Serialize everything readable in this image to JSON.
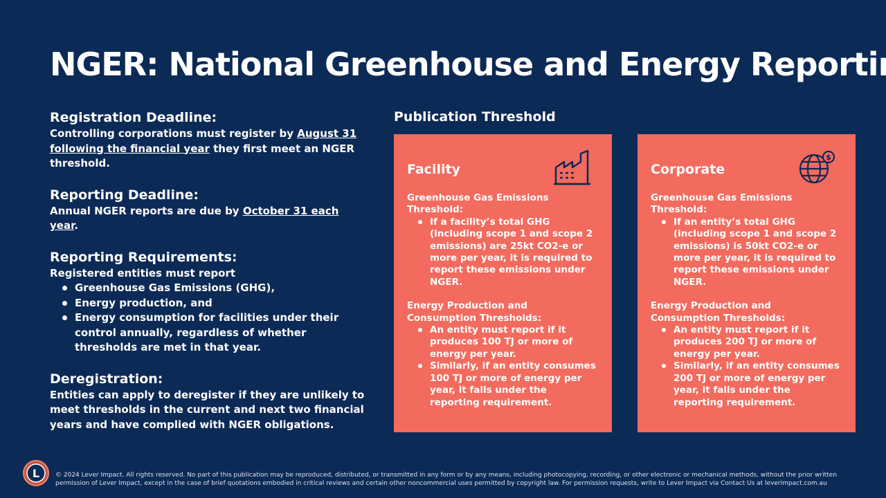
{
  "title": "NGER: National Greenhouse and Energy Reporting",
  "registration": {
    "heading": "Registration Deadline:",
    "text_before": "Controlling corporations must register by ",
    "link": "August 31 following the financial year",
    "text_after": " they first meet an NGER threshold."
  },
  "reporting_deadline": {
    "heading": "Reporting Deadline:",
    "text_before": "Annual NGER reports are due by ",
    "link": "October 31 each year",
    "text_after": "."
  },
  "requirements": {
    "heading": "Reporting Requirements:",
    "intro": "Registered entities must report",
    "items": [
      "Greenhouse Gas Emissions (GHG),",
      "Energy production, and",
      "Energy consumption for facilities under their control annually, regardless of whether thresholds are met in that year."
    ]
  },
  "deregistration": {
    "heading": "Deregistration:",
    "text": "Entities can apply to deregister if they are unlikely to meet thresholds in the current and next two financial years and have complied with NGER obligations."
  },
  "publication_threshold": {
    "heading": "Publication Threshold",
    "facility": {
      "title": "Facility",
      "icon": "factory-icon",
      "ghg_heading": "Greenhouse Gas Emissions Threshold:",
      "ghg_items": [
        "If a facility’s total GHG (including scope 1 and scope 2 emissions) are 25kt CO2-e or more per year, it is required to report these emissions under NGER."
      ],
      "energy_heading": "Energy Production and Consumption Thresholds:",
      "energy_items": [
        "An entity must report if it produces 100 TJ or more of energy per year.",
        "Similarly, if an entity consumes 100 TJ or more of energy per year, it falls under the reporting requirement."
      ]
    },
    "corporate": {
      "title": "Corporate",
      "icon": "globe-dollar-icon",
      "ghg_heading": "Greenhouse Gas Emissions Threshold:",
      "ghg_items": [
        "If an entity’s total GHG (including scope 1 and scope 2 emissions) is 50kt CO2-e or more per year, it is required to report these emissions under NGER."
      ],
      "energy_heading": "Energy Production and Consumption Thresholds:",
      "energy_items": [
        "An entity must report if it produces 200 TJ or more of energy per year.",
        "Similarly, if an entity consumes 200 TJ or more of energy per year, it falls under the reporting requirement."
      ]
    }
  },
  "footer": {
    "logo_letter": "L",
    "text": "© 2024 Lever Impact. All rights reserved. No part of this publication may be reproduced, distributed, or transmitted in any form or by any means, including photocopying, recording, or other electronic or mechanical methods, without the prior written permission of Lever Impact, except in the case of brief quotations embodied in critical reviews and certain other noncommercial uses permitted by copyright law. For permission requests, write to Lever Impact via Contact Us at leverimpact.com.au"
  },
  "colors": {
    "background": "#0c2a56",
    "card": "#f26b5e",
    "icon": "#0c2a56"
  }
}
